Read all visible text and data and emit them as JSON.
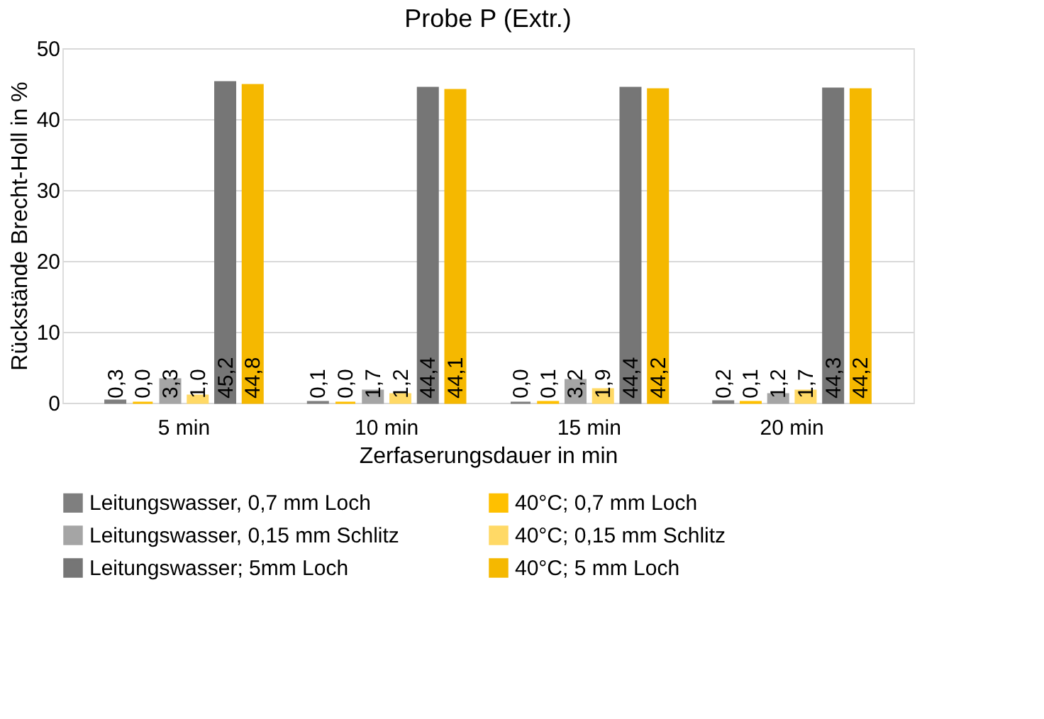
{
  "chart_data": {
    "type": "bar",
    "title": "Probe P (Extr.)",
    "xlabel": "Zerfaserungsdauer in min",
    "ylabel": "Rückstände Brecht-Holl in %",
    "categories": [
      "5 min",
      "10 min",
      "15 min",
      "20 min"
    ],
    "series": [
      {
        "name": "Leitungswasser, 0,7 mm Loch",
        "color": "#7f7f7f",
        "values": [
          0.3,
          0.1,
          0.0,
          0.2
        ],
        "value_labels": [
          "0,3",
          "0,1",
          "0,0",
          "0,2"
        ]
      },
      {
        "name": "40°C; 0,7 mm Loch",
        "color": "#ffc000",
        "values": [
          0.0,
          0.0,
          0.1,
          0.1
        ],
        "value_labels": [
          "0,0",
          "0,0",
          "0,1",
          "0,1"
        ]
      },
      {
        "name": "Leitungswasser, 0,15 mm Schlitz",
        "color": "#a5a5a5",
        "values": [
          3.3,
          1.7,
          3.2,
          1.2
        ],
        "value_labels": [
          "3,3",
          "1,7",
          "3,2",
          "1,2"
        ]
      },
      {
        "name": "40°C; 0,15 mm Schlitz",
        "color": "#ffd966",
        "values": [
          1.0,
          1.2,
          1.9,
          1.7
        ],
        "value_labels": [
          "1,0",
          "1,2",
          "1,9",
          "1,7"
        ]
      },
      {
        "name": "Leitungswasser; 5mm Loch",
        "color": "#767676",
        "values": [
          45.2,
          44.4,
          44.4,
          44.3
        ],
        "value_labels": [
          "45,2",
          "44,4",
          "44,4",
          "44,3"
        ]
      },
      {
        "name": "40°C; 5 mm Loch",
        "color": "#f5b800",
        "values": [
          44.8,
          44.1,
          44.2,
          44.2
        ],
        "value_labels": [
          "44,8",
          "44,1",
          "44,2",
          "44,2"
        ]
      }
    ],
    "ylim": [
      0,
      50
    ],
    "yticks": [
      0,
      10,
      20,
      30,
      40,
      50
    ],
    "grid": "y",
    "legend": "bottom"
  }
}
